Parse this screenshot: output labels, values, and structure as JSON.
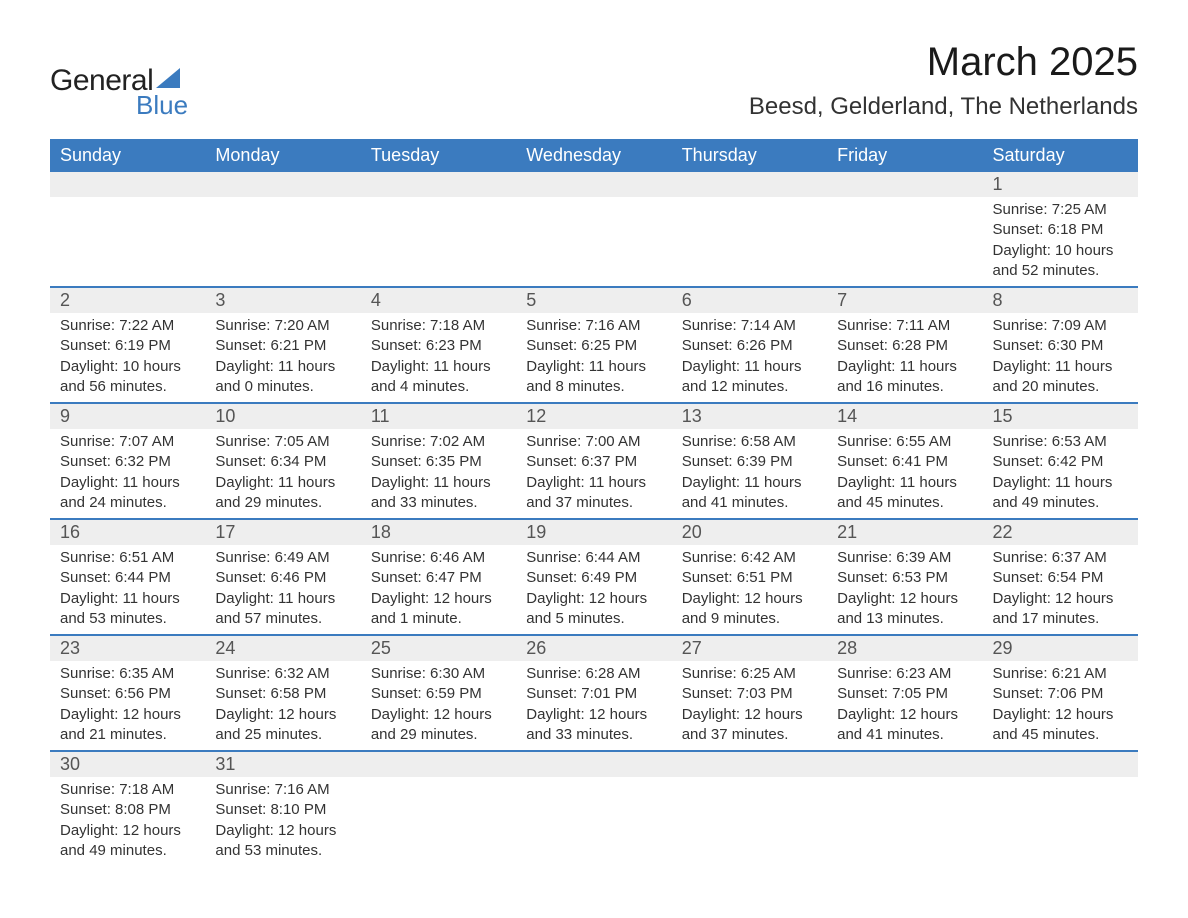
{
  "logo": {
    "general": "General",
    "blue": "Blue",
    "accent_color": "#3b7bbf"
  },
  "title": "March 2025",
  "location": "Beesd, Gelderland, The Netherlands",
  "day_headers": [
    "Sunday",
    "Monday",
    "Tuesday",
    "Wednesday",
    "Thursday",
    "Friday",
    "Saturday"
  ],
  "colors": {
    "header_bg": "#3b7bbf",
    "header_text": "#ffffff",
    "daynum_bg": "#eeeeee",
    "daynum_text": "#555555",
    "detail_text": "#333333",
    "row_divider": "#3b7bbf"
  },
  "weeks": [
    [
      null,
      null,
      null,
      null,
      null,
      null,
      {
        "n": "1",
        "sr": "Sunrise: 7:25 AM",
        "ss": "Sunset: 6:18 PM",
        "d1": "Daylight: 10 hours",
        "d2": "and 52 minutes."
      }
    ],
    [
      {
        "n": "2",
        "sr": "Sunrise: 7:22 AM",
        "ss": "Sunset: 6:19 PM",
        "d1": "Daylight: 10 hours",
        "d2": "and 56 minutes."
      },
      {
        "n": "3",
        "sr": "Sunrise: 7:20 AM",
        "ss": "Sunset: 6:21 PM",
        "d1": "Daylight: 11 hours",
        "d2": "and 0 minutes."
      },
      {
        "n": "4",
        "sr": "Sunrise: 7:18 AM",
        "ss": "Sunset: 6:23 PM",
        "d1": "Daylight: 11 hours",
        "d2": "and 4 minutes."
      },
      {
        "n": "5",
        "sr": "Sunrise: 7:16 AM",
        "ss": "Sunset: 6:25 PM",
        "d1": "Daylight: 11 hours",
        "d2": "and 8 minutes."
      },
      {
        "n": "6",
        "sr": "Sunrise: 7:14 AM",
        "ss": "Sunset: 6:26 PM",
        "d1": "Daylight: 11 hours",
        "d2": "and 12 minutes."
      },
      {
        "n": "7",
        "sr": "Sunrise: 7:11 AM",
        "ss": "Sunset: 6:28 PM",
        "d1": "Daylight: 11 hours",
        "d2": "and 16 minutes."
      },
      {
        "n": "8",
        "sr": "Sunrise: 7:09 AM",
        "ss": "Sunset: 6:30 PM",
        "d1": "Daylight: 11 hours",
        "d2": "and 20 minutes."
      }
    ],
    [
      {
        "n": "9",
        "sr": "Sunrise: 7:07 AM",
        "ss": "Sunset: 6:32 PM",
        "d1": "Daylight: 11 hours",
        "d2": "and 24 minutes."
      },
      {
        "n": "10",
        "sr": "Sunrise: 7:05 AM",
        "ss": "Sunset: 6:34 PM",
        "d1": "Daylight: 11 hours",
        "d2": "and 29 minutes."
      },
      {
        "n": "11",
        "sr": "Sunrise: 7:02 AM",
        "ss": "Sunset: 6:35 PM",
        "d1": "Daylight: 11 hours",
        "d2": "and 33 minutes."
      },
      {
        "n": "12",
        "sr": "Sunrise: 7:00 AM",
        "ss": "Sunset: 6:37 PM",
        "d1": "Daylight: 11 hours",
        "d2": "and 37 minutes."
      },
      {
        "n": "13",
        "sr": "Sunrise: 6:58 AM",
        "ss": "Sunset: 6:39 PM",
        "d1": "Daylight: 11 hours",
        "d2": "and 41 minutes."
      },
      {
        "n": "14",
        "sr": "Sunrise: 6:55 AM",
        "ss": "Sunset: 6:41 PM",
        "d1": "Daylight: 11 hours",
        "d2": "and 45 minutes."
      },
      {
        "n": "15",
        "sr": "Sunrise: 6:53 AM",
        "ss": "Sunset: 6:42 PM",
        "d1": "Daylight: 11 hours",
        "d2": "and 49 minutes."
      }
    ],
    [
      {
        "n": "16",
        "sr": "Sunrise: 6:51 AM",
        "ss": "Sunset: 6:44 PM",
        "d1": "Daylight: 11 hours",
        "d2": "and 53 minutes."
      },
      {
        "n": "17",
        "sr": "Sunrise: 6:49 AM",
        "ss": "Sunset: 6:46 PM",
        "d1": "Daylight: 11 hours",
        "d2": "and 57 minutes."
      },
      {
        "n": "18",
        "sr": "Sunrise: 6:46 AM",
        "ss": "Sunset: 6:47 PM",
        "d1": "Daylight: 12 hours",
        "d2": "and 1 minute."
      },
      {
        "n": "19",
        "sr": "Sunrise: 6:44 AM",
        "ss": "Sunset: 6:49 PM",
        "d1": "Daylight: 12 hours",
        "d2": "and 5 minutes."
      },
      {
        "n": "20",
        "sr": "Sunrise: 6:42 AM",
        "ss": "Sunset: 6:51 PM",
        "d1": "Daylight: 12 hours",
        "d2": "and 9 minutes."
      },
      {
        "n": "21",
        "sr": "Sunrise: 6:39 AM",
        "ss": "Sunset: 6:53 PM",
        "d1": "Daylight: 12 hours",
        "d2": "and 13 minutes."
      },
      {
        "n": "22",
        "sr": "Sunrise: 6:37 AM",
        "ss": "Sunset: 6:54 PM",
        "d1": "Daylight: 12 hours",
        "d2": "and 17 minutes."
      }
    ],
    [
      {
        "n": "23",
        "sr": "Sunrise: 6:35 AM",
        "ss": "Sunset: 6:56 PM",
        "d1": "Daylight: 12 hours",
        "d2": "and 21 minutes."
      },
      {
        "n": "24",
        "sr": "Sunrise: 6:32 AM",
        "ss": "Sunset: 6:58 PM",
        "d1": "Daylight: 12 hours",
        "d2": "and 25 minutes."
      },
      {
        "n": "25",
        "sr": "Sunrise: 6:30 AM",
        "ss": "Sunset: 6:59 PM",
        "d1": "Daylight: 12 hours",
        "d2": "and 29 minutes."
      },
      {
        "n": "26",
        "sr": "Sunrise: 6:28 AM",
        "ss": "Sunset: 7:01 PM",
        "d1": "Daylight: 12 hours",
        "d2": "and 33 minutes."
      },
      {
        "n": "27",
        "sr": "Sunrise: 6:25 AM",
        "ss": "Sunset: 7:03 PM",
        "d1": "Daylight: 12 hours",
        "d2": "and 37 minutes."
      },
      {
        "n": "28",
        "sr": "Sunrise: 6:23 AM",
        "ss": "Sunset: 7:05 PM",
        "d1": "Daylight: 12 hours",
        "d2": "and 41 minutes."
      },
      {
        "n": "29",
        "sr": "Sunrise: 6:21 AM",
        "ss": "Sunset: 7:06 PM",
        "d1": "Daylight: 12 hours",
        "d2": "and 45 minutes."
      }
    ],
    [
      {
        "n": "30",
        "sr": "Sunrise: 7:18 AM",
        "ss": "Sunset: 8:08 PM",
        "d1": "Daylight: 12 hours",
        "d2": "and 49 minutes."
      },
      {
        "n": "31",
        "sr": "Sunrise: 7:16 AM",
        "ss": "Sunset: 8:10 PM",
        "d1": "Daylight: 12 hours",
        "d2": "and 53 minutes."
      },
      null,
      null,
      null,
      null,
      null
    ]
  ]
}
